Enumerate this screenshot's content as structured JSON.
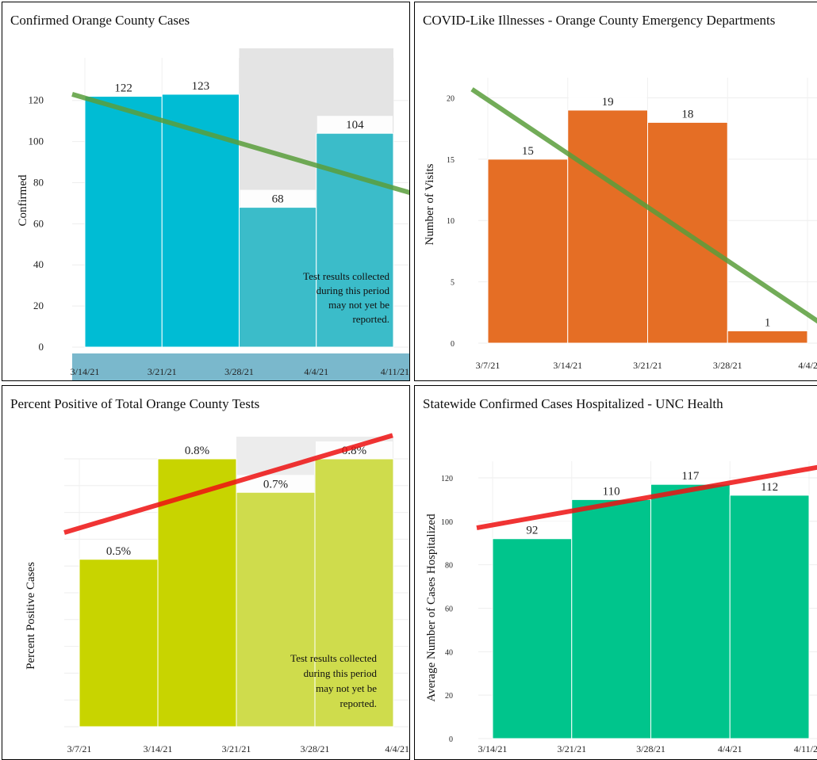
{
  "charts": {
    "confirmed_cases": {
      "title": "Confirmed Orange County Cases",
      "ylabel": "Confirmed",
      "y_ticks": [
        "0",
        "20",
        "40",
        "60",
        "80",
        "100",
        "120"
      ],
      "x_ticks": [
        "3/14/21",
        "3/21/21",
        "3/28/21",
        "4/4/21",
        "4/11/21"
      ],
      "bar_labels": [
        "122",
        "123",
        "68",
        "104"
      ],
      "note": [
        "Test results collected",
        "during this period",
        "may not yet be",
        "reported."
      ]
    },
    "cli_ed": {
      "title": "COVID-Like Illnesses - Orange County Emergency Departments",
      "ylabel": "Number of Visits",
      "y_ticks": [
        "0",
        "5",
        "10",
        "15",
        "20"
      ],
      "x_ticks": [
        "3/7/21",
        "3/14/21",
        "3/21/21",
        "3/28/21",
        "4/4/2"
      ],
      "bar_labels": [
        "15",
        "19",
        "18",
        "1"
      ]
    },
    "percent_positive": {
      "title": "Percent Positive of Total Orange County Tests",
      "ylabel": "Percent Positive Cases",
      "x_ticks": [
        "3/7/21",
        "3/14/21",
        "3/21/21",
        "3/28/21",
        "4/4/21"
      ],
      "bar_labels": [
        "0.5%",
        "0.8%",
        "0.7%",
        "0.8%"
      ],
      "note": [
        "Test results collected",
        "during this period",
        "may not yet be",
        "reported."
      ]
    },
    "hospitalized": {
      "title": "Statewide Confirmed Cases Hospitalized - UNC Health",
      "ylabel": "Average Number of Cases Hospitalized",
      "y_ticks": [
        "0",
        "20",
        "40",
        "60",
        "80",
        "100",
        "120"
      ],
      "x_ticks": [
        "3/14/21",
        "3/21/21",
        "3/28/21",
        "4/4/21",
        "4/11/2"
      ],
      "bar_labels": [
        "92",
        "110",
        "117",
        "112"
      ]
    }
  },
  "chart_data": [
    {
      "type": "bar",
      "title": "Confirmed Orange County Cases",
      "ylabel": "Confirmed",
      "categories": [
        "3/14/21",
        "3/21/21",
        "3/28/21",
        "4/4/21"
      ],
      "values": [
        122,
        123,
        68,
        104
      ],
      "ylim": [
        0,
        133
      ],
      "trendline": [
        123,
        75
      ],
      "trend_color": "#5a9e3c",
      "colors": [
        "#00bcd4",
        "#00bcd4",
        "#3bbcc9",
        "#3bbcc9"
      ],
      "shaded_from_index": 2,
      "grid": true
    },
    {
      "type": "bar",
      "title": "COVID-Like Illnesses - Orange County Emergency Departments",
      "ylabel": "Number of Visits",
      "categories": [
        "3/7/21",
        "3/14/21",
        "3/21/21",
        "3/28/21"
      ],
      "values": [
        15,
        19,
        18,
        1
      ],
      "ylim": [
        0,
        21
      ],
      "trendline": [
        20.7,
        1.7
      ],
      "trend_color": "#5a9e3c",
      "colors": [
        "#e56e25",
        "#e56e25",
        "#e56e25",
        "#e56e25"
      ],
      "grid": true
    },
    {
      "type": "bar",
      "title": "Percent Positive of Total Orange County Tests",
      "ylabel": "Percent Positive Cases",
      "categories": [
        "3/7/21",
        "3/14/21",
        "3/21/21",
        "3/28/21"
      ],
      "values": [
        0.5,
        0.8,
        0.7,
        0.8
      ],
      "ylim": [
        0,
        0.8
      ],
      "trendline": [
        0.58,
        0.87
      ],
      "trend_color": "#ee1111",
      "colors": [
        "#c8d400",
        "#c8d400",
        "#cfdc4c",
        "#cfdc4c"
      ],
      "shaded_from_index": 2,
      "grid": true
    },
    {
      "type": "bar",
      "title": "Statewide Confirmed Cases Hospitalized - UNC Health",
      "ylabel": "Average Number of Cases Hospitalized",
      "categories": [
        "3/14/21",
        "3/21/21",
        "3/28/21",
        "4/4/21"
      ],
      "values": [
        92,
        110,
        117,
        112
      ],
      "ylim": [
        0,
        124
      ],
      "trendline": [
        97,
        125
      ],
      "trend_color": "#ee1111",
      "colors": [
        "#00c58c",
        "#00c58c",
        "#00c58c",
        "#00c58c"
      ],
      "grid": true
    }
  ]
}
